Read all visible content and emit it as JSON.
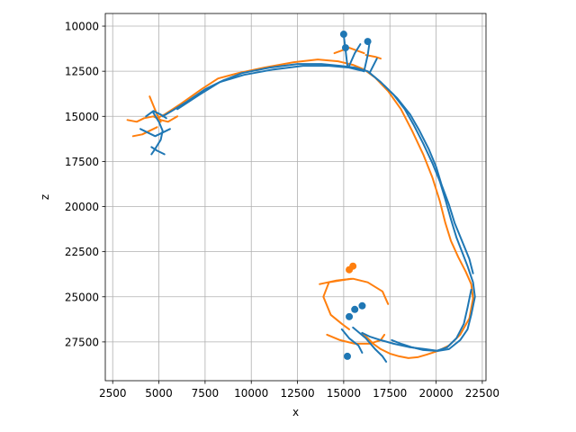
{
  "chart_data": {
    "type": "line",
    "title": "",
    "xlabel": "x",
    "ylabel": "z",
    "xlim": [
      2100,
      22700
    ],
    "ylim": [
      29650,
      9300
    ],
    "y_inverted": true,
    "grid": true,
    "legend": "none",
    "xticks": [
      2500,
      5000,
      7500,
      10000,
      12500,
      15000,
      17500,
      20000,
      22500
    ],
    "xtick_labels": [
      "2500",
      "5000",
      "7500",
      "10000",
      "12500",
      "15000",
      "17500",
      "20000",
      "22500"
    ],
    "yticks": [
      10000,
      12500,
      15000,
      17500,
      20000,
      22500,
      25000,
      27500
    ],
    "ytick_labels": [
      "10000",
      "12500",
      "15000",
      "17500",
      "20000",
      "22500",
      "25000",
      "27500"
    ],
    "series": [
      {
        "color": "#ff7f0e",
        "paths": [
          {
            "x": [
              4900,
              5300,
              6200,
              7300,
              8200,
              9300,
              10700,
              12300,
              13600,
              14700,
              15500,
              16100,
              16700,
              17400,
              18100,
              18700,
              19300,
              19800,
              20200,
              20500,
              20800,
              21200,
              21600,
              21900,
              22000,
              21800,
              21300,
              20700,
              20100,
              19500,
              19000,
              18500,
              18000,
              17500,
              17000,
              16600,
              16300,
              16000
            ],
            "y": [
              15100,
              14900,
              14300,
              13500,
              12900,
              12600,
              12300,
              12000,
              11850,
              11950,
              12150,
              12400,
              12850,
              13600,
              14600,
              15800,
              17100,
              18400,
              19700,
              20900,
              21900,
              22800,
              23600,
              24300,
              25100,
              26200,
              27100,
              27700,
              28000,
              28200,
              28350,
              28400,
              28300,
              28150,
              27900,
              27600,
              27300,
              27000
            ]
          },
          {
            "x": [
              15400,
              14200,
              13900,
              14300,
              14900,
              15300
            ],
            "y": [
              24000,
              24200,
              25000,
              26000,
              26500,
              26800
            ]
          },
          {
            "x": [
              13700,
              14600,
              15500,
              16300,
              17100,
              17400
            ],
            "y": [
              24300,
              24100,
              24000,
              24200,
              24700,
              25400
            ]
          },
          {
            "x": [
              14100,
              14800,
              15600,
              16400,
              17000,
              17200
            ],
            "y": [
              27100,
              27400,
              27600,
              27600,
              27400,
              27100
            ]
          },
          {
            "x": [
              14500,
              15300,
              16100
            ],
            "y": [
              11500,
              11200,
              11500
            ]
          },
          {
            "x": [
              16200,
              16700,
              17000
            ],
            "y": [
              11600,
              11700,
              11800
            ]
          },
          {
            "x": [
              3300,
              3800,
              4200,
              4700,
              5100,
              5500,
              6000
            ],
            "y": [
              15200,
              15300,
              15100,
              15000,
              15200,
              15300,
              15000
            ]
          },
          {
            "x": [
              3600,
              4100,
              4500,
              4900
            ],
            "y": [
              16100,
              16000,
              15800,
              15600
            ]
          },
          {
            "x": [
              4500,
              4700,
              4900,
              5100
            ],
            "y": [
              13900,
              14400,
              14900,
              15300
            ]
          }
        ],
        "blobs": [
          {
            "x": 15500,
            "y": 23300
          },
          {
            "x": 15300,
            "y": 23500
          }
        ]
      },
      {
        "color": "#1f77b4",
        "paths": [
          {
            "x": [
              5200,
              5700,
              6500,
              7500,
              8500,
              9500,
              11000,
              12500,
              13800,
              14800,
              15600,
              16300,
              17000,
              17700,
              18300,
              18800,
              19300,
              19800,
              20200,
              20500,
              20800,
              21100,
              21400,
              21700,
              22000,
              22100,
              21900,
              21700,
              21300,
              20700,
              20100,
              19400,
              18600,
              17700,
              17000,
              16400,
              16000
            ],
            "y": [
              15000,
              14700,
              14200,
              13500,
              13000,
              12600,
              12300,
              12100,
              12100,
              12200,
              12300,
              12500,
              13100,
              13800,
              14600,
              15500,
              16500,
              17600,
              18600,
              19600,
              20700,
              21700,
              22500,
              23300,
              24200,
              25000,
              26000,
              26800,
              27400,
              27900,
              28000,
              27900,
              27800,
              27600,
              27400,
              27200,
              27000
            ]
          },
          {
            "x": [
              6000,
              7200,
              8300,
              9600,
              11200,
              12800,
              14200,
              15300,
              16100
            ],
            "y": [
              14600,
              13800,
              13100,
              12700,
              12400,
              12200,
              12200,
              12300,
              12500
            ]
          },
          {
            "x": [
              17200,
              17900,
              18600,
              19100,
              19600,
              20000,
              20300,
              20700,
              21000,
              21400,
              21800,
              22000
            ],
            "y": [
              13300,
              14000,
              14900,
              15800,
              16800,
              17800,
              18800,
              19900,
              20900,
              21900,
              22900,
              23700
            ]
          },
          {
            "x": [
              21900,
              21700,
              21500,
              21100,
              20600,
              20000,
              19300,
              18700,
              18100,
              17600
            ],
            "y": [
              24600,
              25600,
              26500,
              27300,
              27800,
              28000,
              27950,
              27800,
              27600,
              27400
            ]
          },
          {
            "x": [
              15200,
              15100,
              15000
            ],
            "y": [
              12200,
              11300,
              10500
            ]
          },
          {
            "x": [
              15300,
              15600,
              15900
            ],
            "y": [
              12200,
              11500,
              11000
            ]
          },
          {
            "x": [
              16100,
              16300,
              16400
            ],
            "y": [
              12500,
              11600,
              10900
            ]
          },
          {
            "x": [
              16400,
              16800
            ],
            "y": [
              12600,
              11800
            ]
          },
          {
            "x": [
              4700,
              5000,
              5200,
              5100,
              4800,
              4600
            ],
            "y": [
              14800,
              15300,
              15800,
              16300,
              16800,
              17100
            ]
          },
          {
            "x": [
              4000,
              4400,
              4800,
              5200,
              5600
            ],
            "y": [
              15700,
              15900,
              16100,
              15900,
              15700
            ]
          },
          {
            "x": [
              4300,
              4700,
              5100,
              5400
            ],
            "y": [
              15000,
              14700,
              14900,
              15100
            ]
          },
          {
            "x": [
              4600,
              4900,
              5300
            ],
            "y": [
              16700,
              16900,
              17100
            ]
          },
          {
            "x": [
              15500,
              16200,
              16700,
              17100,
              17300
            ],
            "y": [
              26700,
              27300,
              27900,
              28300,
              28600
            ]
          },
          {
            "x": [
              14900,
              15300,
              15800,
              16000
            ],
            "y": [
              26800,
              27300,
              27700,
              28100
            ]
          }
        ],
        "blobs": [
          {
            "x": 15600,
            "y": 25700
          },
          {
            "x": 15300,
            "y": 26100
          },
          {
            "x": 16000,
            "y": 25500
          },
          {
            "x": 15200,
            "y": 28300
          },
          {
            "x": 15000,
            "y": 10450
          },
          {
            "x": 16300,
            "y": 10850
          },
          {
            "x": 15100,
            "y": 11200
          }
        ]
      }
    ]
  }
}
